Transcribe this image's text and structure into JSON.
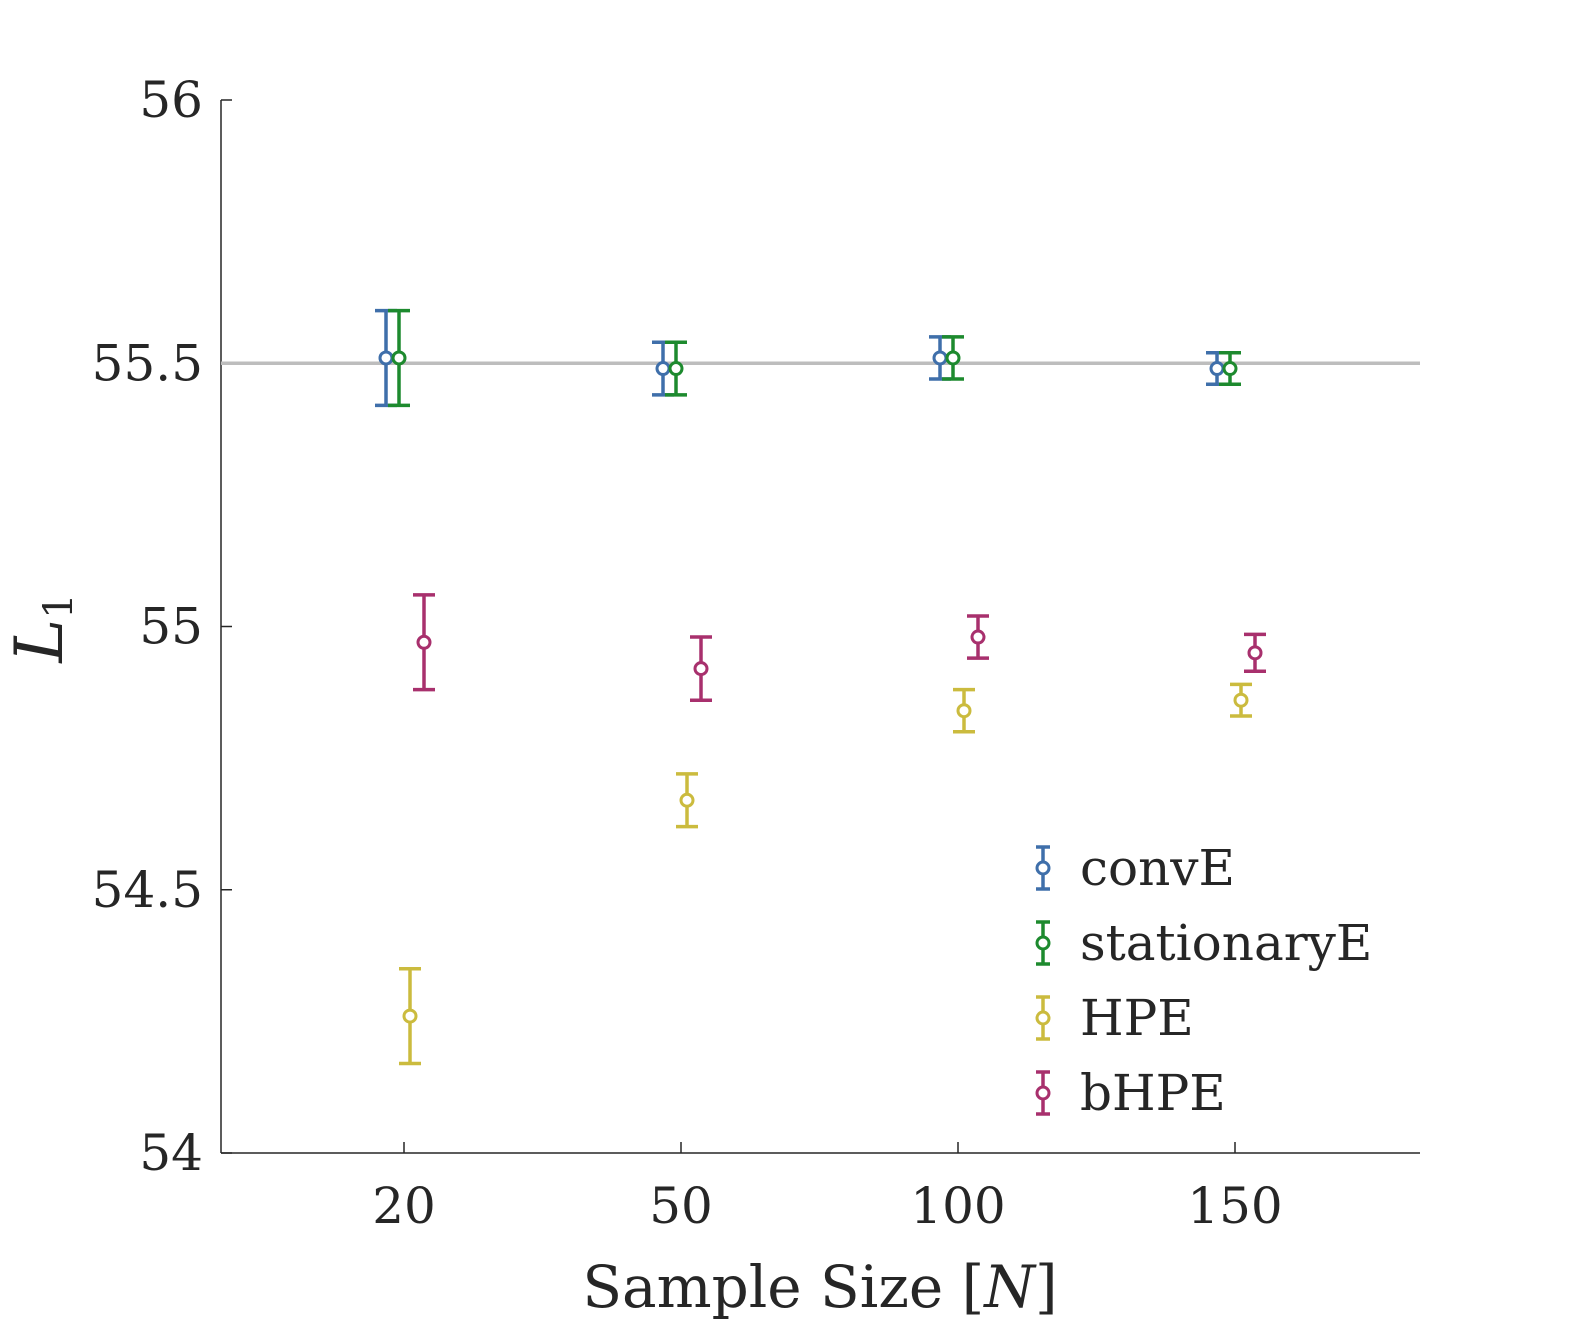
{
  "chart_data": {
    "type": "scatter",
    "categories": [
      "20",
      "50",
      "100",
      "150"
    ],
    "xlabel": "Sample Size [N]",
    "ylabel": "L1",
    "ylim": [
      54,
      56
    ],
    "yticks": [
      "54",
      "54.5",
      "55",
      "55.5",
      "56"
    ],
    "reference_line": 55.5,
    "legend_position": "bottom-right",
    "grid": false,
    "series": [
      {
        "name": "convE",
        "color": "#3f6faa",
        "values": [
          55.51,
          55.49,
          55.51,
          55.49
        ],
        "errors": [
          0.09,
          0.05,
          0.04,
          0.03
        ]
      },
      {
        "name": "stationaryE",
        "color": "#1d8a2e",
        "values": [
          55.51,
          55.49,
          55.51,
          55.49
        ],
        "errors": [
          0.09,
          0.05,
          0.04,
          0.03
        ]
      },
      {
        "name": "HPE",
        "color": "#cbbb3e",
        "values": [
          54.26,
          54.67,
          54.84,
          54.86
        ],
        "errors": [
          0.09,
          0.05,
          0.04,
          0.03
        ]
      },
      {
        "name": "bHPE",
        "color": "#a8306d",
        "values": [
          54.97,
          54.92,
          54.98,
          54.95
        ],
        "errors": [
          0.09,
          0.06,
          0.04,
          0.035
        ]
      }
    ]
  }
}
